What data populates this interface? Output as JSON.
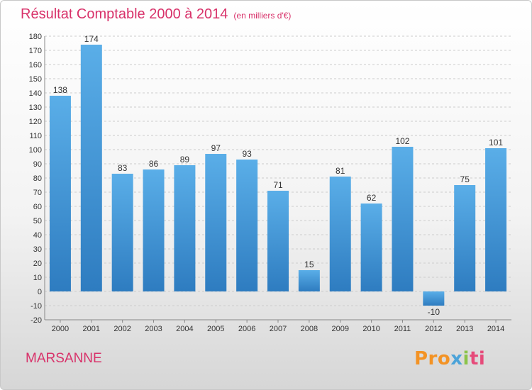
{
  "title": "Résultat Comptable 2000 à 2014",
  "subtitle": "(en milliers d'€)",
  "commune": "MARSANNE",
  "logo": {
    "p1": "Pro",
    "p2": "x",
    "p3": "i",
    "p4": "ti"
  },
  "colors": {
    "title": "#d8326a",
    "bar_top": "#5aaee8",
    "bar_bottom": "#2e7cc0"
  },
  "chart_data": {
    "type": "bar",
    "categories": [
      "2000",
      "2001",
      "2002",
      "2003",
      "2004",
      "2005",
      "2006",
      "2007",
      "2008",
      "2009",
      "2010",
      "2011",
      "2012",
      "2013",
      "2014"
    ],
    "values": [
      138,
      174,
      83,
      86,
      89,
      97,
      93,
      71,
      15,
      81,
      62,
      102,
      -10,
      75,
      101
    ],
    "value_labels": [
      "138",
      "174",
      "83",
      "86",
      "89",
      "97",
      "93",
      "71",
      "15",
      "81",
      "62",
      "102",
      "-10",
      "75",
      "101"
    ],
    "ylim": [
      -20,
      180
    ],
    "yticks": [
      -20,
      -10,
      0,
      10,
      20,
      30,
      40,
      50,
      60,
      70,
      80,
      90,
      100,
      110,
      120,
      130,
      140,
      150,
      160,
      170,
      180
    ],
    "grid": true
  }
}
